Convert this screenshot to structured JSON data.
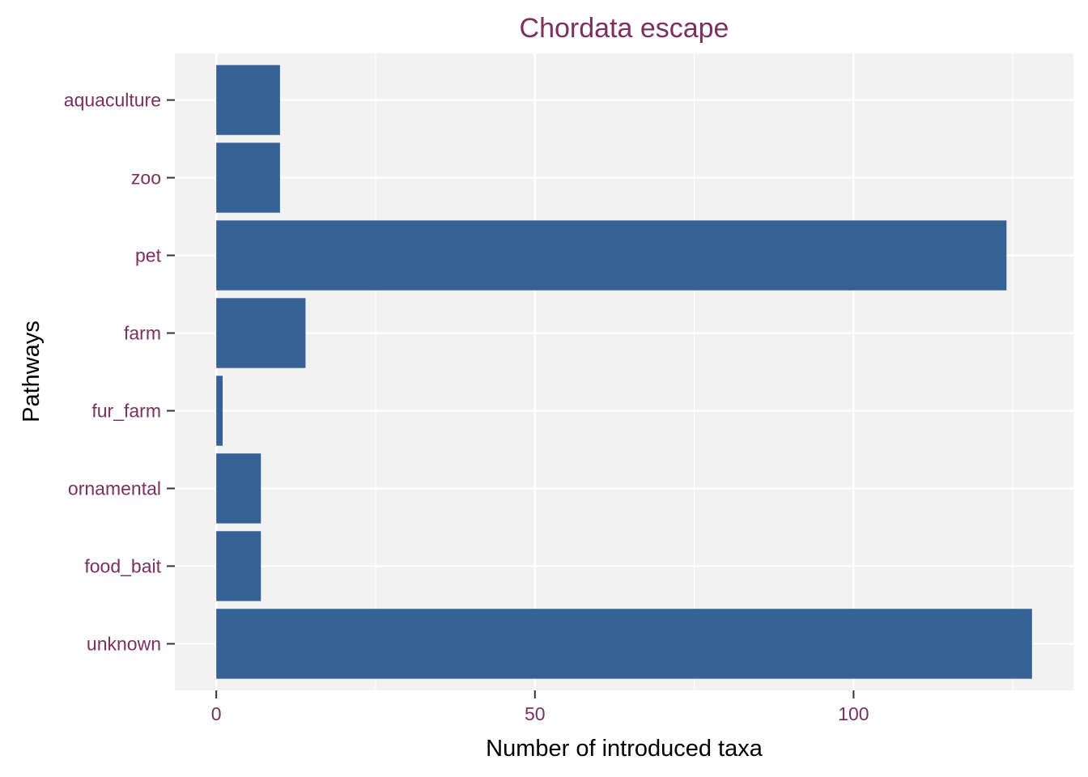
{
  "chart_data": {
    "type": "bar",
    "orientation": "horizontal",
    "title": "Chordata escape",
    "xlabel": "Number of introduced taxa",
    "ylabel": "Pathways",
    "categories": [
      "aquaculture",
      "zoo",
      "pet",
      "farm",
      "fur_farm",
      "ornamental",
      "food_bait",
      "unknown"
    ],
    "values": [
      10,
      10,
      124,
      14,
      1,
      7,
      7,
      128
    ],
    "xlim": [
      -6.5,
      134.5
    ],
    "xticks": [
      0,
      50,
      100
    ],
    "grid": true,
    "legend": "none",
    "colors": {
      "bar": "#366195",
      "panel_background": "#f2f2f2",
      "grid": "#ffffff",
      "title_text": "#7b3060",
      "tick_text": "#7b3060",
      "axis_title_text": "#000000",
      "tick_mark": "#333333"
    }
  }
}
